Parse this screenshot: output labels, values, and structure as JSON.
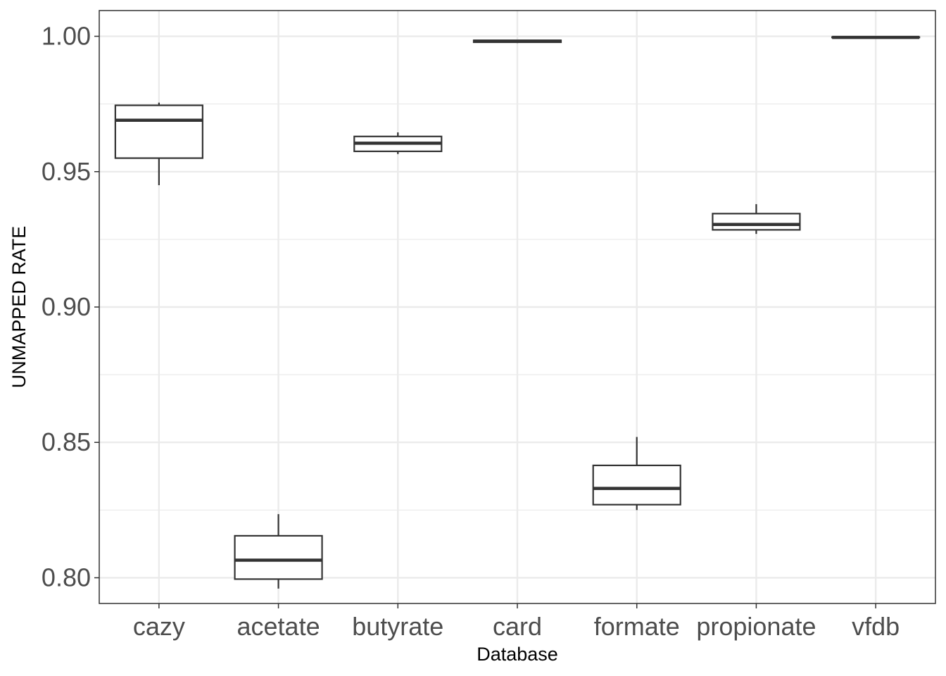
{
  "chart_data": {
    "type": "boxplot",
    "xlabel": "Database",
    "ylabel": "UNMAPPED RATE",
    "ylim": [
      0.7905,
      1.0095
    ],
    "yticks": [
      0.8,
      0.85,
      0.9,
      0.95,
      1.0
    ],
    "ytick_labels": [
      "0.80",
      "0.85",
      "0.90",
      "0.95",
      "1.00"
    ],
    "y_minor_gridlines": [
      0.825,
      0.875,
      0.925,
      0.975
    ],
    "grid": true,
    "categories": [
      "cazy",
      "acetate",
      "butyrate",
      "card",
      "formate",
      "propionate",
      "vfdb"
    ],
    "boxes": [
      {
        "category": "cazy",
        "whisker_low": 0.945,
        "q1": 0.955,
        "median": 0.969,
        "q3": 0.9745,
        "whisker_high": 0.9755
      },
      {
        "category": "acetate",
        "whisker_low": 0.796,
        "q1": 0.7995,
        "median": 0.8065,
        "q3": 0.8155,
        "whisker_high": 0.8235
      },
      {
        "category": "butyrate",
        "whisker_low": 0.9565,
        "q1": 0.9575,
        "median": 0.9605,
        "q3": 0.963,
        "whisker_high": 0.9645
      },
      {
        "category": "card",
        "whisker_low": 0.9975,
        "q1": 0.9978,
        "median": 0.9982,
        "q3": 0.9985,
        "whisker_high": 0.9987
      },
      {
        "category": "formate",
        "whisker_low": 0.825,
        "q1": 0.827,
        "median": 0.833,
        "q3": 0.8415,
        "whisker_high": 0.852
      },
      {
        "category": "propionate",
        "whisker_low": 0.927,
        "q1": 0.9285,
        "median": 0.9305,
        "q3": 0.9345,
        "whisker_high": 0.938
      },
      {
        "category": "vfdb",
        "whisker_low": 0.9995,
        "q1": 0.9996,
        "median": 0.9996,
        "q3": 0.9997,
        "whisker_high": 0.9998
      }
    ],
    "colors": {
      "panel_border": "#333333",
      "grid": "#ebebeb",
      "box_stroke": "#333333",
      "box_fill": "#ffffff"
    }
  }
}
